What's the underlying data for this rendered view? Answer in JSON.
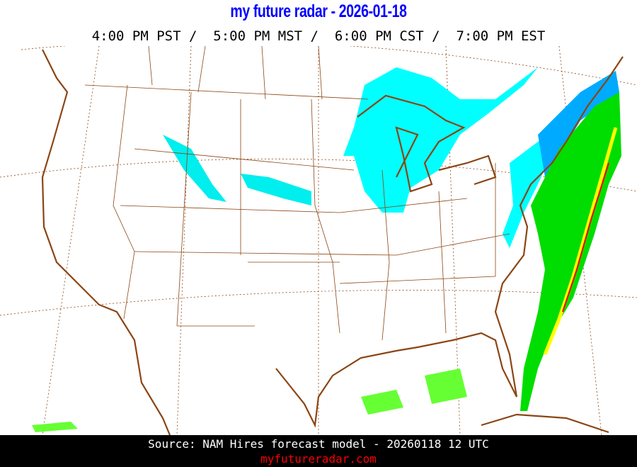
{
  "header": {
    "title": "my future radar - 2026-01-18",
    "times": "4:00 PM PST /  5:00 PM MST /  6:00 PM CST /  7:00 PM EST"
  },
  "map": {
    "region": "Continental United States",
    "colors": {
      "border": "#8b4513",
      "snow_light": "#00ffff",
      "snow_medium": "#00ccee",
      "snow_heavy": "#0099ff",
      "rain_light": "#00ff00",
      "rain_medium": "#00bb00",
      "rain_heavy": "#ffff00",
      "rain_intense": "#ff0000"
    }
  },
  "footer": {
    "source": "Source: NAM Hires forecast model - 20260118 12 UTC",
    "site": "myfutureradar.com"
  }
}
